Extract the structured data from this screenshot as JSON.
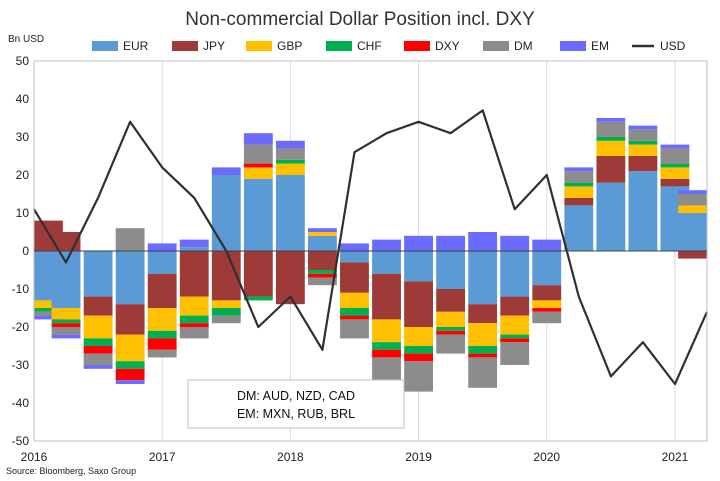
{
  "chart_data": {
    "type": "area",
    "title": "Non-commercial Dollar Position incl. DXY",
    "ylabel": "Bn USD",
    "ylim": [
      -50,
      50
    ],
    "yticks": [
      -50,
      -40,
      -30,
      -20,
      -10,
      0,
      10,
      20,
      30,
      40,
      50
    ],
    "xlim": [
      2016,
      2021.25
    ],
    "xticks": [
      {
        "value": 2016,
        "label": "2016"
      },
      {
        "value": 2017,
        "label": "2017"
      },
      {
        "value": 2018,
        "label": "2018"
      },
      {
        "value": 2019,
        "label": "2019"
      },
      {
        "value": 2020,
        "label": "2020"
      },
      {
        "value": 2021,
        "label": "2021"
      }
    ],
    "grid": "vertical",
    "legend_position": "top",
    "source": "Source: Bloomberg, Saxo Group",
    "annotation": [
      "DM: AUD, NZD, CAD",
      "EM: MXN, RUB, BRL"
    ],
    "x": [
      2016.0,
      2016.25,
      2016.5,
      2016.75,
      2017.0,
      2017.25,
      2017.5,
      2017.75,
      2018.0,
      2018.25,
      2018.5,
      2018.75,
      2019.0,
      2019.25,
      2019.5,
      2019.75,
      2020.0,
      2020.25,
      2020.5,
      2020.75,
      2021.0,
      2021.25
    ],
    "series": [
      {
        "name": "EUR",
        "color": "#5b9bd5",
        "kind": "bar",
        "values": [
          -13,
          -15,
          -12,
          -14,
          -6,
          1,
          20,
          19,
          20,
          4,
          -3,
          -6,
          -8,
          -10,
          -14,
          -12,
          -9,
          12,
          18,
          21,
          17,
          10
        ]
      },
      {
        "name": "JPY",
        "color": "#9e3a38",
        "kind": "bar",
        "values": [
          8,
          5,
          -5,
          -8,
          -9,
          -12,
          -13,
          -12,
          -14,
          -5,
          -8,
          -12,
          -12,
          -6,
          -5,
          -5,
          -4,
          2,
          7,
          4,
          2,
          -2
        ]
      },
      {
        "name": "GBP",
        "color": "#ffc000",
        "kind": "bar",
        "values": [
          -2,
          -3,
          -6,
          -7,
          -6,
          -5,
          -2,
          3,
          3,
          1,
          -4,
          -6,
          -5,
          -4,
          -6,
          -5,
          -2,
          3,
          4,
          3,
          3,
          2
        ]
      },
      {
        "name": "CHF",
        "color": "#00b050",
        "kind": "bar",
        "values": [
          -1,
          -1,
          -2,
          -2,
          -2,
          -2,
          -2,
          -1,
          1,
          -1,
          -2,
          -2,
          -2,
          -1,
          -2,
          -1,
          0,
          1,
          1,
          1,
          1,
          0
        ]
      },
      {
        "name": "DXY",
        "color": "#ff0000",
        "kind": "bar",
        "values": [
          0,
          -1,
          -2,
          -3,
          -3,
          -1,
          0,
          1,
          0,
          -1,
          -1,
          -2,
          -2,
          -1,
          -1,
          -1,
          -1,
          0,
          0,
          0,
          0,
          0
        ]
      },
      {
        "name": "DM",
        "color": "#8c8c8c",
        "kind": "bar",
        "values": [
          -1,
          -2,
          -3,
          6,
          -2,
          -3,
          -2,
          5,
          3,
          -2,
          -5,
          -8,
          -8,
          -5,
          -8,
          -6,
          -3,
          3,
          4,
          3,
          4,
          3
        ]
      },
      {
        "name": "EM",
        "color": "#6b6bff",
        "kind": "bar",
        "values": [
          -1,
          -1,
          -1,
          -1,
          2,
          2,
          2,
          3,
          2,
          1,
          2,
          3,
          4,
          4,
          5,
          4,
          3,
          1,
          1,
          1,
          1,
          1
        ]
      },
      {
        "name": "USD",
        "color": "#303030",
        "kind": "line",
        "values": [
          11,
          -3,
          14,
          34,
          22,
          14,
          0,
          -20,
          -12,
          -26,
          26,
          31,
          34,
          31,
          37,
          11,
          20,
          -12,
          -33,
          -24,
          -35,
          -16
        ]
      }
    ]
  }
}
